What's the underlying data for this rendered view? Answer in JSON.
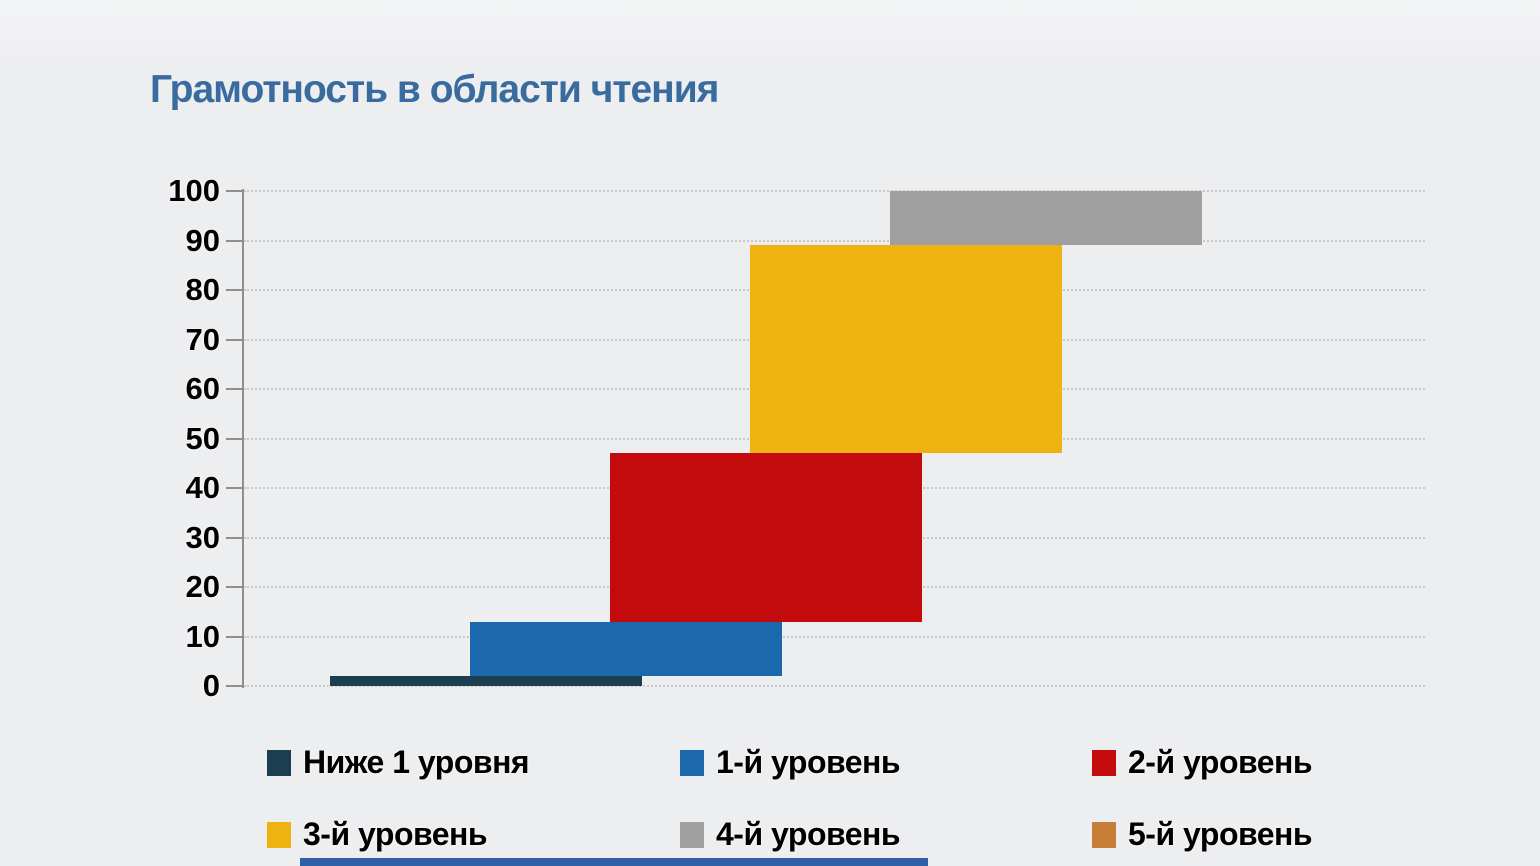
{
  "title": "Грамотность в области чтения",
  "colors": {
    "background": "#eeeff0",
    "title": "#3a6b9f",
    "axis": "#8f8f8f",
    "gridline": "#c9c9c9",
    "tick_text": "#000000",
    "bottom_strip": "#2f5fa6"
  },
  "chart_data": {
    "type": "bar",
    "variant": "floating-step-bars (each level spans cumulative from→to, overlapping horizontally)",
    "title": "Грамотность в области чтения",
    "xlabel": "",
    "ylabel": "",
    "ylim": [
      0,
      100
    ],
    "ytick_step": 10,
    "yticks": [
      0,
      10,
      20,
      30,
      40,
      50,
      60,
      70,
      80,
      90,
      100
    ],
    "grid": "horizontal dotted lines at every 10",
    "legend_position": "bottom, two rows of three",
    "series": [
      {
        "name": "Ниже 1 уровня",
        "from": 0,
        "to": 2,
        "value": 2,
        "color": "#1b3f50"
      },
      {
        "name": "1-й уровень",
        "from": 2,
        "to": 13,
        "value": 11,
        "color": "#1c68ad"
      },
      {
        "name": "2-й уровень",
        "from": 13,
        "to": 47,
        "value": 34,
        "color": "#c30b0e"
      },
      {
        "name": "3-й уровень",
        "from": 47,
        "to": 89,
        "value": 42,
        "color": "#efb211"
      },
      {
        "name": "4-й уровень",
        "from": 89,
        "to": 100,
        "value": 11,
        "color": "#a09fa0"
      },
      {
        "name": "5-й уровень",
        "from": 100,
        "to": 100,
        "value": 0,
        "color": "#c77e38"
      }
    ]
  }
}
